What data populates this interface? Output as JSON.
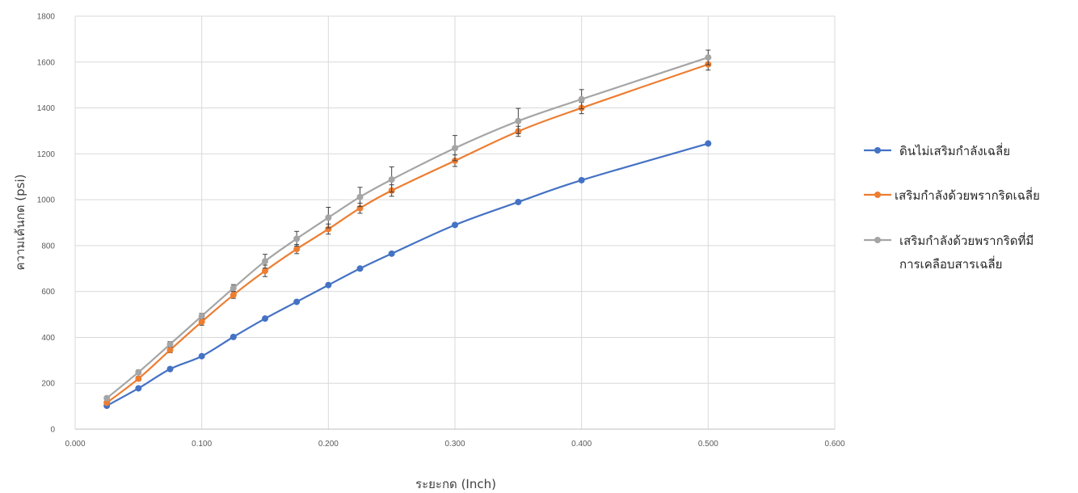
{
  "chart_data": {
    "type": "line",
    "xlabel": "ระยะกด (Inch)",
    "ylabel": "ความเค้นกด (psi)",
    "xlim": [
      0,
      0.6
    ],
    "ylim": [
      0,
      1800
    ],
    "x_ticks": [
      "0.000",
      "0.100",
      "0.200",
      "0.300",
      "0.400",
      "0.500",
      "0.600"
    ],
    "y_ticks": [
      "0",
      "200",
      "400",
      "600",
      "800",
      "1000",
      "1200",
      "1400",
      "1600",
      "1800"
    ],
    "grid": true,
    "legend_position": "right",
    "series": [
      {
        "name": "ดินไม่เสริมกำลังเฉลี่ย",
        "color": "#4472C4",
        "legend_lines": [
          "ดินไม่เสริมกำลังเฉลี่ย"
        ],
        "x": [
          0.025,
          0.05,
          0.075,
          0.1,
          0.125,
          0.15,
          0.175,
          0.2,
          0.225,
          0.25,
          0.3,
          0.35,
          0.4,
          0.5
        ],
        "y": [
          102,
          178,
          262,
          318,
          402,
          482,
          555,
          628,
          700,
          765,
          890,
          990,
          1085,
          1245
        ],
        "error": []
      },
      {
        "name": "เสริมกำลังด้วยพรากริดเฉลี่ย",
        "color": "#ED7D31",
        "legend_lines": [
          "เสริมกำลังด้วยพรากริดเฉลี่ย"
        ],
        "x": [
          0.025,
          0.05,
          0.075,
          0.1,
          0.125,
          0.15,
          0.175,
          0.2,
          0.225,
          0.25,
          0.3,
          0.35,
          0.4,
          0.5
        ],
        "y": [
          115,
          220,
          345,
          468,
          585,
          690,
          785,
          872,
          963,
          1040,
          1170,
          1298,
          1400,
          1590
        ],
        "error": [
          8,
          10,
          12,
          15,
          15,
          25,
          20,
          22,
          22,
          25,
          25,
          22,
          25,
          25
        ]
      },
      {
        "name": "เสริมกำลังด้วยพรากริดที่มีการเคลือบสารเฉลี่ย",
        "color": "#A5A5A5",
        "legend_lines": [
          "เสริมกำลังด้วยพรากริดที่มี",
          "การเคลือบสารเฉลี่ย"
        ],
        "x": [
          0.025,
          0.05,
          0.075,
          0.1,
          0.125,
          0.15,
          0.175,
          0.2,
          0.225,
          0.25,
          0.3,
          0.35,
          0.4,
          0.5
        ],
        "y": [
          135,
          248,
          370,
          493,
          615,
          732,
          830,
          922,
          1012,
          1088,
          1225,
          1343,
          1438,
          1620
        ],
        "error": [
          8,
          10,
          12,
          12,
          15,
          30,
          32,
          45,
          42,
          55,
          55,
          55,
          42,
          32
        ]
      }
    ]
  }
}
